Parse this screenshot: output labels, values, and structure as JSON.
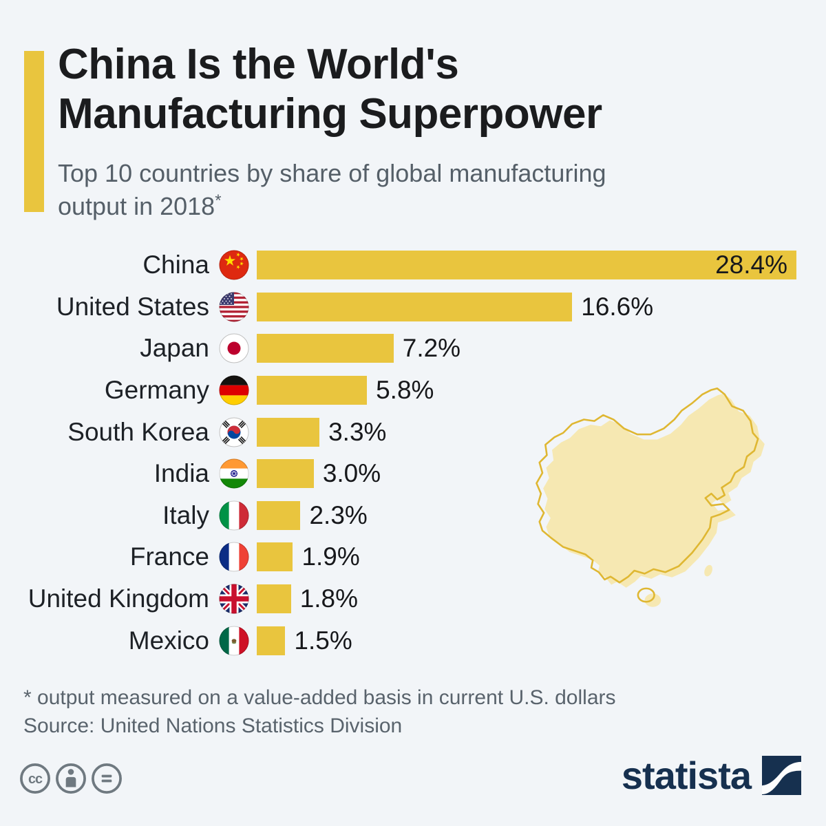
{
  "header": {
    "title_line1": "China Is the World's",
    "title_line2": "Manufacturing Superpower",
    "subtitle_line1": "Top 10 countries by share of global manufacturing",
    "subtitle_line2": "output in 2018",
    "footnote_marker": "*"
  },
  "chart_data": {
    "type": "bar",
    "orientation": "horizontal",
    "title": "Top 10 countries by share of global manufacturing output in 2018*",
    "unit": "%",
    "categories": [
      "China",
      "United States",
      "Japan",
      "Germany",
      "South Korea",
      "India",
      "Italy",
      "France",
      "United Kingdom",
      "Mexico"
    ],
    "values": [
      28.4,
      16.6,
      7.2,
      5.8,
      3.3,
      3.0,
      2.3,
      1.9,
      1.8,
      1.5
    ],
    "value_labels": [
      "28.4%",
      "16.6%",
      "7.2%",
      "5.8%",
      "3.3%",
      "3.0%",
      "2.3%",
      "1.9%",
      "1.8%",
      "1.5%"
    ],
    "xlim": [
      0,
      28.4
    ],
    "bar_color": "#e9c53e",
    "value_label_position": "first bar: inside right; others: outside right",
    "flag_icons": [
      "china-flag-icon",
      "united-states-flag-icon",
      "japan-flag-icon",
      "germany-flag-icon",
      "south-korea-flag-icon",
      "india-flag-icon",
      "italy-flag-icon",
      "france-flag-icon",
      "united-kingdom-flag-icon",
      "mexico-flag-icon"
    ]
  },
  "map": {
    "name": "china-map-silhouette",
    "fill": "#f6e8b2",
    "stroke": "#dfb732"
  },
  "footer": {
    "footnote": "* output measured on a value-added basis in current U.S. dollars",
    "source": "Source: United Nations Statistics Division",
    "license_icons": [
      "creative-commons-icon",
      "attribution-person-icon",
      "equals-icon"
    ],
    "brand_name": "statista"
  },
  "colors": {
    "background": "#f2f5f8",
    "accent_yellow": "#e9c53e",
    "title_text": "#1b1c1e",
    "subtitle_text": "#555f68",
    "footnote_text": "#59636c",
    "brand_navy": "#16304f",
    "license_gray": "#6f7980"
  }
}
